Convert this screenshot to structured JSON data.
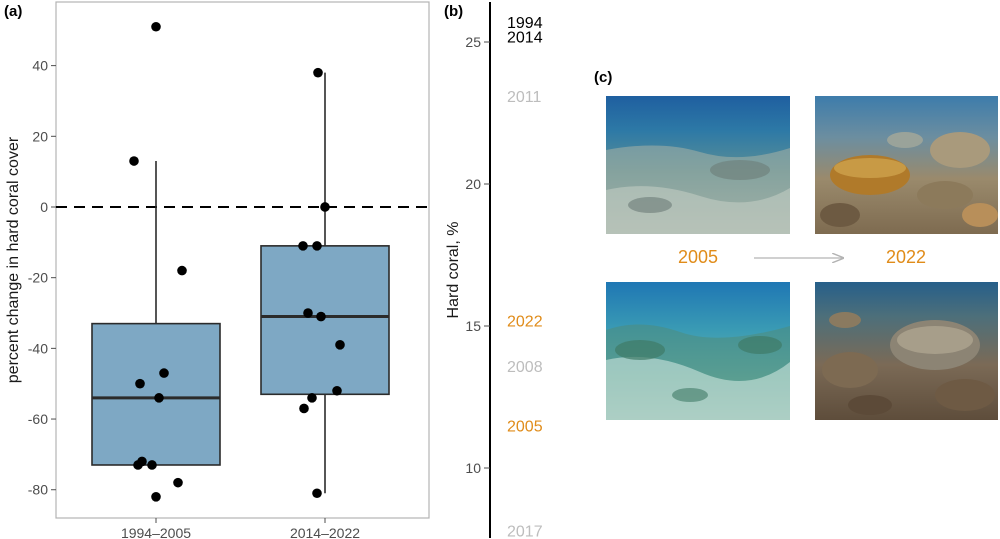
{
  "panel_labels": {
    "a": "(a)",
    "b": "(b)",
    "c": "(c)"
  },
  "colors": {
    "box_fill": "#7ea8c4",
    "box_stroke": "#2b2b2b",
    "point": "#000000",
    "highlight": "#e08c1a",
    "muted": "#bdbdbd",
    "dark": "#000000",
    "arrow": "#b3b3b3"
  },
  "chart_data": [
    {
      "type": "box",
      "ylabel": "percent change in hard coral cover",
      "xlabel": "",
      "ylim": [
        -88,
        58
      ],
      "yticks": [
        40,
        20,
        0,
        -20,
        -40,
        -60,
        -80
      ],
      "reference_line": {
        "y": 0,
        "style": "dashed"
      },
      "grid": false,
      "categories": [
        "1994–2005",
        "2014–2022"
      ],
      "boxes": [
        {
          "category": "1994–2005",
          "q1": -73,
          "median": -54,
          "q3": -33,
          "whisker_low": -73,
          "whisker_high": 13,
          "points": [
            51,
            13,
            -18,
            -47,
            -50,
            -54,
            -72,
            -73,
            -73,
            -78,
            -82
          ]
        },
        {
          "category": "2014–2022",
          "q1": -53,
          "median": -31,
          "q3": -11,
          "whisker_low": -81,
          "whisker_high": 38,
          "points": [
            38,
            0,
            -11,
            -11,
            -30,
            -31,
            -39,
            -52,
            -54,
            -57,
            -81
          ]
        }
      ]
    },
    {
      "type": "scatter",
      "ylabel": "Hard coral, %",
      "ylim": [
        7.5,
        26.2
      ],
      "yticks": [
        25,
        20,
        15,
        10
      ],
      "labels": [
        {
          "year": "1994",
          "value": 25.7,
          "tone": "dark"
        },
        {
          "year": "2014",
          "value": 25.2,
          "tone": "dark"
        },
        {
          "year": "2011",
          "value": 23.1,
          "tone": "muted"
        },
        {
          "year": "2022",
          "value": 15.2,
          "tone": "highlight"
        },
        {
          "year": "2008",
          "value": 13.6,
          "tone": "muted"
        },
        {
          "year": "2005",
          "value": 11.5,
          "tone": "highlight"
        },
        {
          "year": "2017",
          "value": 7.8,
          "tone": "muted"
        }
      ]
    }
  ],
  "photos": {
    "before_label": "2005",
    "after_label": "2022"
  }
}
